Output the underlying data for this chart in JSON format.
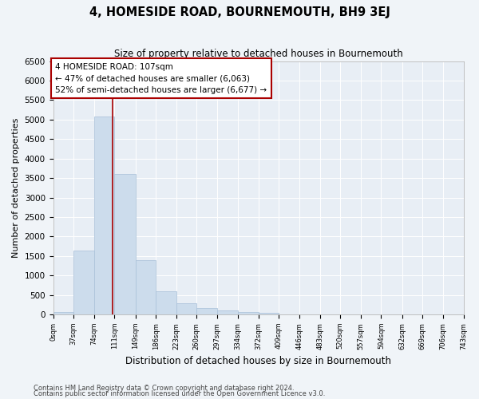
{
  "title": "4, HOMESIDE ROAD, BOURNEMOUTH, BH9 3EJ",
  "subtitle": "Size of property relative to detached houses in Bournemouth",
  "xlabel": "Distribution of detached houses by size in Bournemouth",
  "ylabel": "Number of detached properties",
  "bin_edges": [
    0,
    37,
    74,
    111,
    149,
    186,
    223,
    260,
    297,
    334,
    372,
    409,
    446,
    483,
    520,
    557,
    594,
    632,
    669,
    706,
    743
  ],
  "bin_counts": [
    65,
    1640,
    5080,
    3600,
    1390,
    600,
    290,
    155,
    100,
    70,
    50,
    0,
    0,
    0,
    0,
    0,
    0,
    0,
    0,
    0
  ],
  "bar_color": "#ccdcec",
  "bar_edge_color": "#a8c0d8",
  "background_color": "#e8eef5",
  "grid_color": "#ffffff",
  "property_line_x": 107,
  "property_line_color": "#aa0000",
  "annotation_line1": "4 HOMESIDE ROAD: 107sqm",
  "annotation_line2": "← 47% of detached houses are smaller (6,063)",
  "annotation_line3": "52% of semi-detached houses are larger (6,677) →",
  "annotation_box_facecolor": "#ffffff",
  "annotation_box_edgecolor": "#aa0000",
  "ylim": [
    0,
    6500
  ],
  "yticks": [
    0,
    500,
    1000,
    1500,
    2000,
    2500,
    3000,
    3500,
    4000,
    4500,
    5000,
    5500,
    6000,
    6500
  ],
  "fig_facecolor": "#f0f4f8",
  "footnote1": "Contains HM Land Registry data © Crown copyright and database right 2024.",
  "footnote2": "Contains public sector information licensed under the Open Government Licence v3.0."
}
